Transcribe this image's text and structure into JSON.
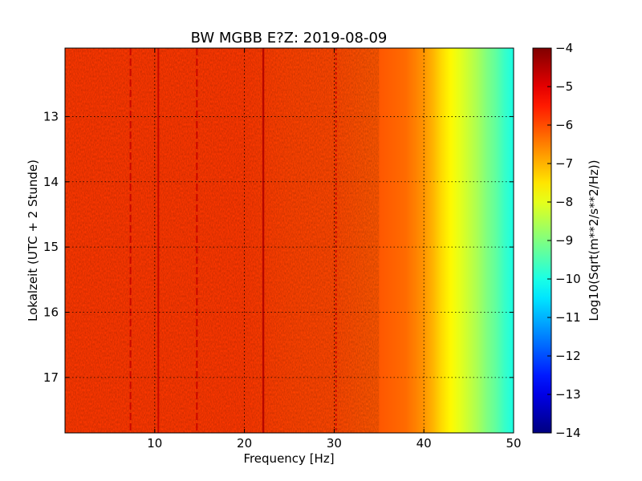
{
  "chart_data": {
    "type": "heatmap",
    "title": "BW MGBB E?Z: 2019-08-09",
    "xlabel": "Frequency [Hz]",
    "ylabel": "Lokalzeit (UTC + 2 Stunde)",
    "xlim": [
      0,
      50
    ],
    "ylim": [
      17.85,
      11.95
    ],
    "y_inverted": true,
    "grid": true,
    "x_ticks": [
      10,
      20,
      30,
      40,
      50
    ],
    "y_ticks": [
      13,
      14,
      15,
      16,
      17
    ],
    "colorbar": {
      "label": "Log10(Sqrt(m**2/s**2/Hz))",
      "min": -14,
      "max": -4,
      "ticks": [
        -4,
        -5,
        -6,
        -7,
        -8,
        -9,
        -10,
        -11,
        -12,
        -13,
        -14
      ],
      "colormap": "jet"
    },
    "spectrum_profile": {
      "frequency_hz": [
        0,
        5,
        10,
        15,
        20,
        25,
        30,
        35,
        38,
        40,
        41,
        42,
        43,
        44,
        45,
        46,
        47,
        48,
        49,
        50
      ],
      "log10_amplitude": [
        -5.8,
        -5.8,
        -5.8,
        -5.8,
        -5.8,
        -5.9,
        -5.95,
        -6.1,
        -6.3,
        -6.7,
        -7.0,
        -7.4,
        -7.7,
        -8.0,
        -8.3,
        -8.6,
        -9.0,
        -9.3,
        -9.7,
        -10.0
      ]
    },
    "spectral_lines_hz": [
      7.3,
      10.4,
      14.7,
      22.1,
      30.2
    ]
  }
}
